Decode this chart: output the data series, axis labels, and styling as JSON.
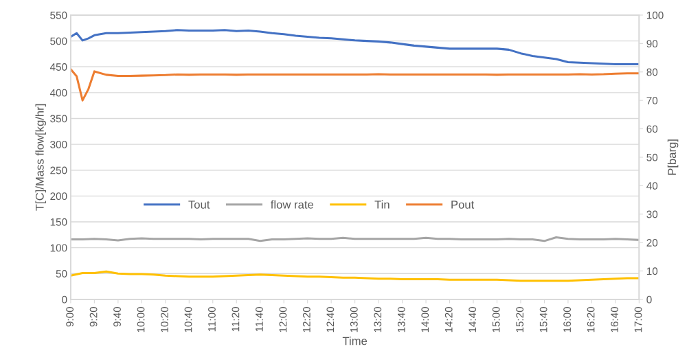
{
  "chart_data": {
    "type": "line",
    "xlabel": "Time",
    "ylabel": "T[C]/Mass flow[kg/hr]",
    "y2label": "P[barg]",
    "xlim": [
      9,
      17
    ],
    "xticks": [
      {
        "value": 9,
        "label": "9:00"
      },
      {
        "value": 9.3333,
        "label": "9:20"
      },
      {
        "value": 9.6667,
        "label": "9:40"
      },
      {
        "value": 10,
        "label": "10:00"
      },
      {
        "value": 10.3333,
        "label": "10:20"
      },
      {
        "value": 10.6667,
        "label": "10:40"
      },
      {
        "value": 11,
        "label": "11:00"
      },
      {
        "value": 11.3333,
        "label": "11:20"
      },
      {
        "value": 11.6667,
        "label": "11:40"
      },
      {
        "value": 12,
        "label": "12:00"
      },
      {
        "value": 12.3333,
        "label": "12:20"
      },
      {
        "value": 12.6667,
        "label": "12:40"
      },
      {
        "value": 13,
        "label": "13:00"
      },
      {
        "value": 13.3333,
        "label": "13:20"
      },
      {
        "value": 13.6667,
        "label": "13:40"
      },
      {
        "value": 14,
        "label": "14:00"
      },
      {
        "value": 14.3333,
        "label": "14:20"
      },
      {
        "value": 14.6667,
        "label": "14:40"
      },
      {
        "value": 15,
        "label": "15:00"
      },
      {
        "value": 15.3333,
        "label": "15:20"
      },
      {
        "value": 15.6667,
        "label": "15:40"
      },
      {
        "value": 16,
        "label": "16:00"
      },
      {
        "value": 16.3333,
        "label": "16:20"
      },
      {
        "value": 16.6667,
        "label": "16:40"
      },
      {
        "value": 17,
        "label": "17:00"
      }
    ],
    "ylim": [
      0,
      550
    ],
    "yticks": [
      0,
      50,
      100,
      150,
      200,
      250,
      300,
      350,
      400,
      450,
      500,
      550
    ],
    "y2lim": [
      0,
      100
    ],
    "y2ticks": [
      0,
      10,
      20,
      30,
      40,
      50,
      60,
      70,
      80,
      90,
      100
    ],
    "grid": "y",
    "legend": "center",
    "marker": "none",
    "line_style": "solid",
    "series": [
      {
        "name": "Tout",
        "color": "#4472c4",
        "x": [
          9,
          9.0833,
          9.1667,
          9.25,
          9.3333,
          9.5,
          9.6667,
          9.8333,
          10,
          10.1667,
          10.3333,
          10.5,
          10.6667,
          10.8333,
          11,
          11.1667,
          11.3333,
          11.5,
          11.6667,
          11.8333,
          12,
          12.1667,
          12.3333,
          12.5,
          12.6667,
          12.8333,
          13,
          13.1667,
          13.3333,
          13.5,
          13.6667,
          13.8333,
          14,
          14.1667,
          14.3333,
          14.5,
          14.6667,
          14.8333,
          15,
          15.1667,
          15.3333,
          15.5,
          15.6667,
          15.8333,
          16,
          16.1667,
          16.3333,
          16.5,
          16.6667,
          16.8333,
          17
        ],
        "values": [
          508,
          515,
          501,
          505,
          511,
          515,
          515,
          516,
          517,
          518,
          519,
          521,
          520,
          520,
          520,
          521,
          519,
          520,
          518,
          515,
          513,
          510,
          508,
          506,
          505,
          503,
          501,
          500,
          499,
          497,
          494,
          491,
          489,
          487,
          485,
          485,
          485,
          485,
          485,
          483,
          476,
          471,
          468,
          465,
          459,
          458,
          457,
          456,
          455,
          455,
          455
        ]
      },
      {
        "name": "flow rate",
        "color": "#a5a5a5",
        "x": [
          9,
          9.1667,
          9.3333,
          9.5,
          9.6667,
          9.8333,
          10,
          10.1667,
          10.3333,
          10.5,
          10.6667,
          10.8333,
          11,
          11.1667,
          11.3333,
          11.5,
          11.6667,
          11.8333,
          12,
          12.1667,
          12.3333,
          12.5,
          12.6667,
          12.8333,
          13,
          13.1667,
          13.3333,
          13.5,
          13.6667,
          13.8333,
          14,
          14.1667,
          14.3333,
          14.5,
          14.6667,
          14.8333,
          15,
          15.1667,
          15.3333,
          15.5,
          15.6667,
          15.8333,
          16,
          16.1667,
          16.3333,
          16.5,
          16.6667,
          16.8333,
          17
        ],
        "values": [
          116,
          116,
          117,
          116,
          114,
          117,
          118,
          117,
          117,
          117,
          117,
          116,
          117,
          117,
          117,
          117,
          113,
          116,
          116,
          117,
          118,
          117,
          117,
          119,
          117,
          117,
          117,
          117,
          117,
          117,
          119,
          117,
          117,
          116,
          116,
          116,
          116,
          117,
          116,
          116,
          113,
          120,
          117,
          116,
          116,
          116,
          117,
          116,
          115
        ]
      },
      {
        "name": "Tin",
        "color": "#ffc000",
        "x": [
          9,
          9.1667,
          9.3333,
          9.5,
          9.6667,
          9.8333,
          10,
          10.1667,
          10.3333,
          10.5,
          10.6667,
          10.8333,
          11,
          11.1667,
          11.3333,
          11.5,
          11.6667,
          11.8333,
          12,
          12.1667,
          12.3333,
          12.5,
          12.6667,
          12.8333,
          13,
          13.1667,
          13.3333,
          13.5,
          13.6667,
          13.8333,
          14,
          14.1667,
          14.3333,
          14.5,
          14.6667,
          14.8333,
          15,
          15.1667,
          15.3333,
          15.5,
          15.6667,
          15.8333,
          16,
          16.1667,
          16.3333,
          16.5,
          16.6667,
          16.8333,
          17
        ],
        "values": [
          46,
          51,
          51,
          54,
          50,
          49,
          49,
          48,
          46,
          45,
          44,
          44,
          44,
          45,
          46,
          47,
          48,
          47,
          46,
          45,
          44,
          44,
          43,
          42,
          42,
          41,
          40,
          40,
          39,
          39,
          39,
          39,
          38,
          38,
          38,
          38,
          38,
          37,
          36,
          36,
          36,
          36,
          36,
          37,
          38,
          39,
          40,
          41,
          41
        ]
      },
      {
        "name": "Pout",
        "color": "#ed7d31",
        "axis": "y2",
        "x": [
          9,
          9.0833,
          9.1667,
          9.25,
          9.3333,
          9.5,
          9.6667,
          9.8333,
          10,
          10.1667,
          10.3333,
          10.5,
          10.6667,
          10.8333,
          11,
          11.1667,
          11.3333,
          11.5,
          11.6667,
          11.8333,
          12,
          12.1667,
          12.3333,
          12.5,
          12.6667,
          12.8333,
          13,
          13.1667,
          13.3333,
          13.5,
          13.6667,
          13.8333,
          14,
          14.1667,
          14.3333,
          14.5,
          14.6667,
          14.8333,
          15,
          15.1667,
          15.3333,
          15.5,
          15.6667,
          15.8333,
          16,
          16.1667,
          16.3333,
          16.5,
          16.6667,
          16.8333,
          17
        ],
        "values": [
          81,
          78.5,
          70,
          74,
          80.2,
          79,
          78.6,
          78.6,
          78.7,
          78.8,
          78.9,
          79.1,
          79,
          79.1,
          79.1,
          79.1,
          79,
          79.1,
          79.1,
          79.1,
          79.1,
          79.1,
          79.1,
          79.1,
          79.1,
          79.1,
          79.1,
          79.1,
          79.2,
          79.1,
          79.1,
          79.1,
          79.1,
          79.1,
          79.1,
          79.1,
          79.1,
          79.1,
          79,
          79.1,
          79.1,
          79.1,
          79.1,
          79.1,
          79.1,
          79.2,
          79.1,
          79.2,
          79.4,
          79.5,
          79.5
        ]
      }
    ]
  }
}
